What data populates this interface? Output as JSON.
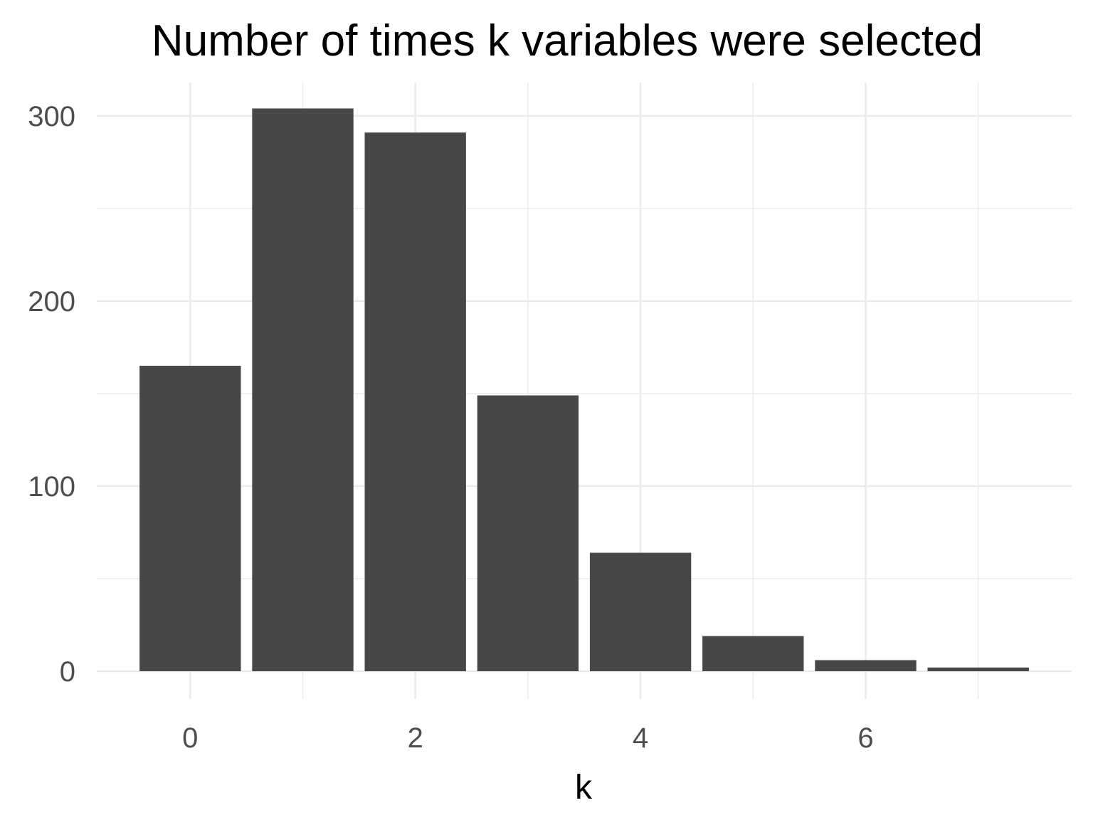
{
  "chart_data": {
    "type": "bar",
    "title": "Number of times k variables were selected",
    "xlabel": "k",
    "ylabel": "",
    "categories": [
      0,
      1,
      2,
      3,
      4,
      5,
      6,
      7
    ],
    "values": [
      165,
      304,
      291,
      149,
      64,
      19,
      6,
      2
    ],
    "xlim": [
      -0.83,
      7.83
    ],
    "ylim": [
      -15,
      318
    ],
    "x_ticks": [
      0,
      2,
      4,
      6
    ],
    "y_ticks": [
      0,
      100,
      200,
      300
    ],
    "bar_color": "#474747",
    "grid": true,
    "legend": "none"
  }
}
